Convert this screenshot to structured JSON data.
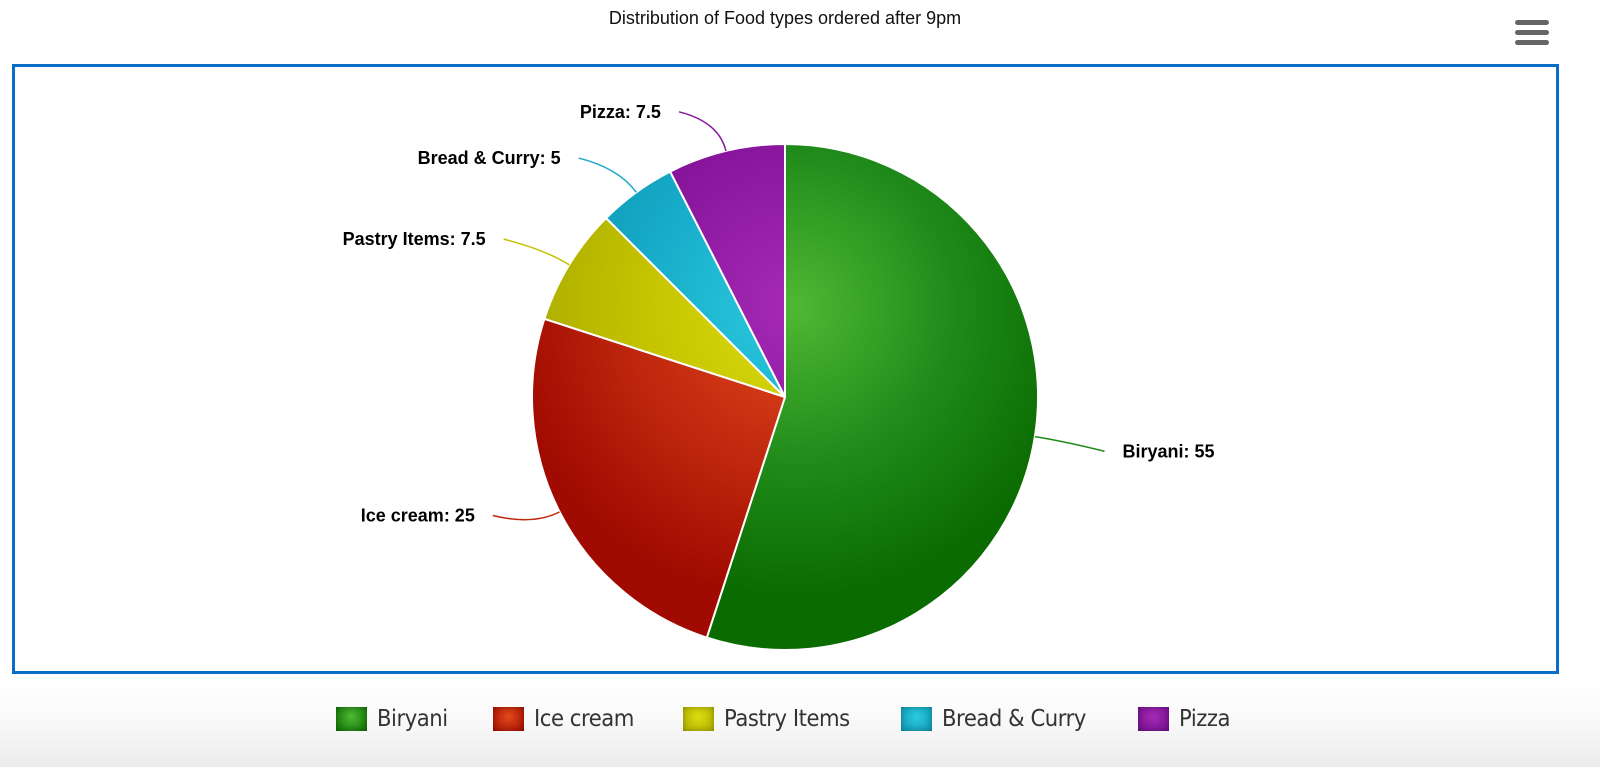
{
  "header": {
    "title": "Distribution of Food types ordered after 9pm",
    "menu_icon": "hamburger-menu-icon"
  },
  "colors": {
    "frame_border": "#0a6ec8",
    "menu_icon": "#666666"
  },
  "chart_data": {
    "type": "pie",
    "title": "Distribution of Food types ordered after 9pm",
    "start_angle_deg": 0,
    "direction": "clockwise",
    "categories": [
      "Biryani",
      "Ice cream",
      "Pastry Items",
      "Bread & Curry",
      "Pizza"
    ],
    "values": [
      55,
      25,
      7.5,
      5,
      7.5
    ],
    "colors": [
      "#1f8a1a",
      "#c0280e",
      "#c2c200",
      "#16aac8",
      "#8a169e"
    ],
    "colors_light": [
      "#4fb833",
      "#e24a1c",
      "#dede10",
      "#2ccbe0",
      "#a52ab5"
    ],
    "colors_dark": [
      "#0a6b00",
      "#a00a00",
      "#a8a800",
      "#0d93ad",
      "#700c8a"
    ],
    "data_labels": [
      "Biryani: 55",
      "Ice cream: 25",
      "Pastry Items: 7.5",
      "Bread & Curry: 5",
      "Pizza: 7.5"
    ],
    "legend_position": "bottom",
    "center": [
      785,
      397
    ],
    "radius": 253
  },
  "legend": {
    "items": [
      {
        "label": "Biryani",
        "color": "#1f8a1a"
      },
      {
        "label": "Ice cream",
        "color": "#c0280e"
      },
      {
        "label": "Pastry Items",
        "color": "#c2c200"
      },
      {
        "label": "Bread & Curry",
        "color": "#16aac8"
      },
      {
        "label": "Pizza",
        "color": "#8a169e"
      }
    ]
  }
}
